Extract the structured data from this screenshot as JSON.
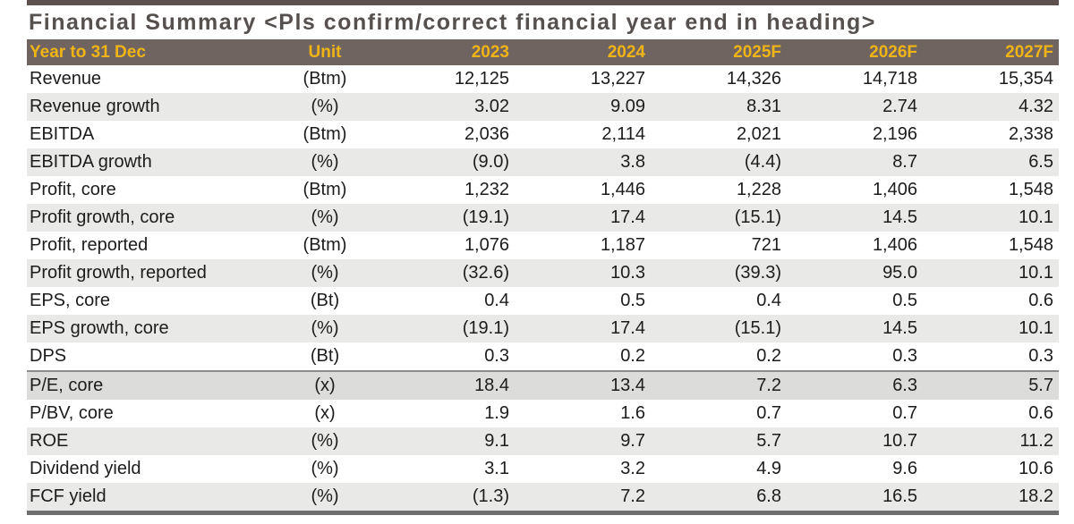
{
  "title": "Financial Summary <Pls confirm/correct financial year end in heading>",
  "table": {
    "columns": [
      "Year to 31 Dec",
      "Unit",
      "2023",
      "2024",
      "2025F",
      "2026F",
      "2027F"
    ],
    "rows": [
      {
        "label": "Revenue",
        "unit": "(Btm)",
        "values": [
          "12,125",
          "13,227",
          "14,326",
          "14,718",
          "15,354"
        ]
      },
      {
        "label": "Revenue growth",
        "unit": "(%)",
        "values": [
          "3.02",
          "9.09",
          "8.31",
          "2.74",
          "4.32"
        ]
      },
      {
        "label": "EBITDA",
        "unit": "(Btm)",
        "values": [
          "2,036",
          "2,114",
          "2,021",
          "2,196",
          "2,338"
        ]
      },
      {
        "label": "EBITDA growth",
        "unit": "(%)",
        "values": [
          "(9.0)",
          "3.8",
          "(4.4)",
          "8.7",
          "6.5"
        ]
      },
      {
        "label": "Profit, core",
        "unit": "(Btm)",
        "values": [
          "1,232",
          "1,446",
          "1,228",
          "1,406",
          "1,548"
        ]
      },
      {
        "label": "Profit growth, core",
        "unit": "(%)",
        "values": [
          "(19.1)",
          "17.4",
          "(15.1)",
          "14.5",
          "10.1"
        ]
      },
      {
        "label": "Profit, reported",
        "unit": "(Btm)",
        "values": [
          "1,076",
          "1,187",
          "721",
          "1,406",
          "1,548"
        ]
      },
      {
        "label": "Profit growth, reported",
        "unit": "(%)",
        "values": [
          "(32.6)",
          "10.3",
          "(39.3)",
          "95.0",
          "10.1"
        ]
      },
      {
        "label": "EPS, core",
        "unit": "(Bt)",
        "values": [
          "0.4",
          "0.5",
          "0.4",
          "0.5",
          "0.6"
        ]
      },
      {
        "label": "EPS growth, core",
        "unit": "(%)",
        "values": [
          "(19.1)",
          "17.4",
          "(15.1)",
          "14.5",
          "10.1"
        ]
      },
      {
        "label": "DPS",
        "unit": "(Bt)",
        "values": [
          "0.3",
          "0.2",
          "0.2",
          "0.3",
          "0.3"
        ]
      },
      {
        "label": "P/E, core",
        "unit": "(x)",
        "values": [
          "18.4",
          "13.4",
          "7.2",
          "6.3",
          "5.7"
        ],
        "highlight": true,
        "divider_above": true
      },
      {
        "label": "P/BV, core",
        "unit": "(x)",
        "values": [
          "1.9",
          "1.6",
          "0.7",
          "0.7",
          "0.6"
        ]
      },
      {
        "label": "ROE",
        "unit": "(%)",
        "values": [
          "9.1",
          "9.7",
          "5.7",
          "10.7",
          "11.2"
        ]
      },
      {
        "label": "Dividend yield",
        "unit": "(%)",
        "values": [
          "3.1",
          "3.2",
          "4.9",
          "9.6",
          "10.6"
        ]
      },
      {
        "label": "FCF yield",
        "unit": "(%)",
        "values": [
          "(1.3)",
          "7.2",
          "6.8",
          "16.5",
          "18.2"
        ]
      }
    ]
  },
  "colors": {
    "top_bar": "#5e514d",
    "header_bg": "#6f6460",
    "header_text": "#f0b417",
    "title_text": "#56514f",
    "row_alt": "#e9e9e7",
    "row_highlight": "#dcdcda",
    "divider": "#8c8c8c",
    "bottom_border": "#6f6f6f",
    "body_text": "#1c1c1c"
  }
}
